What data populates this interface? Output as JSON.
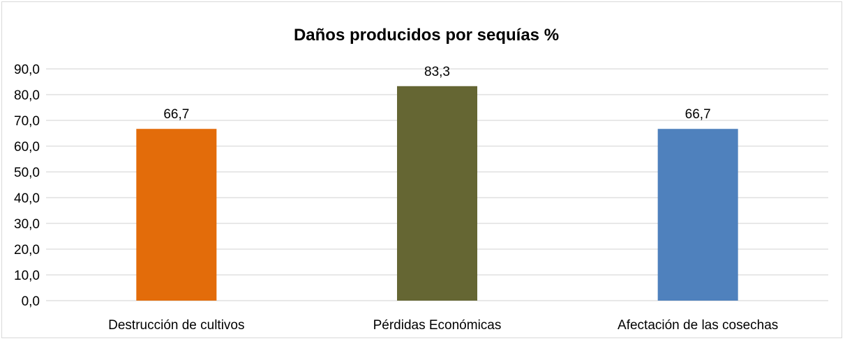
{
  "chart_data": {
    "type": "bar",
    "title": "Daños producidos por sequías %",
    "categories": [
      "Destrucción de cultivos",
      "Pérdidas Económicas",
      "Afectación de las cosechas"
    ],
    "values": [
      66.7,
      83.3,
      66.7
    ],
    "data_labels": [
      "66,7",
      "83,3",
      "66,7"
    ],
    "colors": [
      "#e36c0a",
      "#656633",
      "#4f81bd"
    ],
    "ylim": [
      0,
      90
    ],
    "yticks": [
      0,
      10,
      20,
      30,
      40,
      50,
      60,
      70,
      80,
      90
    ],
    "ytick_labels": [
      "0,0",
      "10,0",
      "20,0",
      "30,0",
      "40,0",
      "50,0",
      "60,0",
      "70,0",
      "80,0",
      "90,0"
    ],
    "xlabel": "",
    "ylabel": "",
    "grid": true,
    "legend": "none"
  }
}
